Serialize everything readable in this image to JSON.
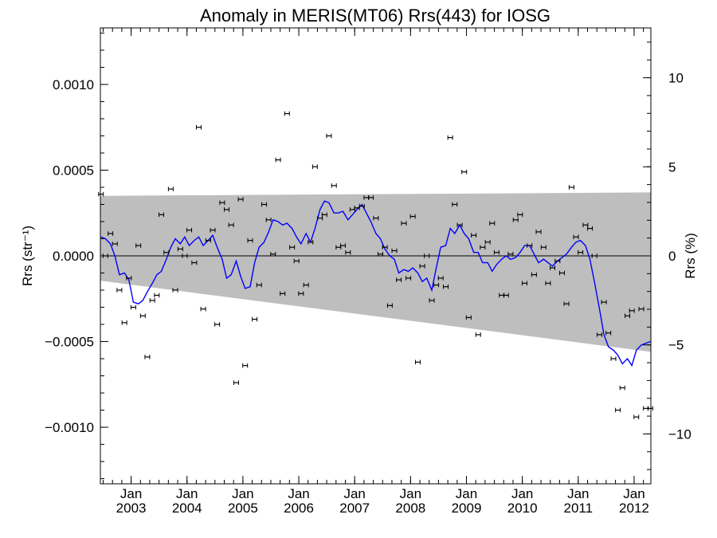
{
  "chart_data": {
    "type": "scatter",
    "title": "Anomaly in MERIS(MT06) Rrs(443) for IOSG",
    "ylabel": "Rrs (str⁻¹)",
    "ylabel_right": "Rrs (%)",
    "xlabel": "",
    "xlim": [
      2002.45,
      2012.3
    ],
    "ylim": [
      -0.00133,
      0.00133
    ],
    "ylim_right": [
      -12.8,
      12.8
    ],
    "x_ticks": [
      {
        "x": 2003.0,
        "top": "Jan",
        "bottom": "2003"
      },
      {
        "x": 2004.0,
        "top": "Jan",
        "bottom": "2004"
      },
      {
        "x": 2005.0,
        "top": "Jan",
        "bottom": "2005"
      },
      {
        "x": 2006.0,
        "top": "Jan",
        "bottom": "2006"
      },
      {
        "x": 2007.0,
        "top": "Jan",
        "bottom": "2007"
      },
      {
        "x": 2008.0,
        "top": "Jan",
        "bottom": "2008"
      },
      {
        "x": 2009.0,
        "top": "Jan",
        "bottom": "2009"
      },
      {
        "x": 2010.0,
        "top": "Jan",
        "bottom": "2010"
      },
      {
        "x": 2011.0,
        "top": "Jan",
        "bottom": "2011"
      },
      {
        "x": 2012.0,
        "top": "Jan",
        "bottom": "2012"
      }
    ],
    "y_ticks": [
      {
        "value": 0.001,
        "label": "0.0010"
      },
      {
        "value": 0.0005,
        "label": "0.0005"
      },
      {
        "value": 0.0,
        "label": "0.0000"
      },
      {
        "value": -0.0005,
        "label": "−0.0005"
      },
      {
        "value": -0.001,
        "label": "−0.0010"
      }
    ],
    "y_ticks_right": [
      {
        "value": 10,
        "label": "10"
      },
      {
        "value": 5,
        "label": "5"
      },
      {
        "value": 0,
        "label": "0"
      },
      {
        "value": -5,
        "label": "−5"
      },
      {
        "value": -10,
        "label": "−10"
      }
    ],
    "band": {
      "upper": [
        [
          2002.45,
          0.00035
        ],
        [
          2012.3,
          0.00037
        ]
      ],
      "lower": [
        [
          2002.45,
          -0.000145
        ],
        [
          2012.3,
          -0.00056
        ]
      ],
      "color": "#bebebe"
    },
    "zero_line": 0,
    "points": [
      [
        2002.46,
        0.00036
      ],
      [
        2002.54,
        0.0
      ],
      [
        2002.63,
        0.00013
      ],
      [
        2002.71,
        7e-05
      ],
      [
        2002.79,
        -0.0002
      ],
      [
        2002.88,
        -0.00039
      ],
      [
        2002.96,
        -0.00013
      ],
      [
        2003.04,
        -0.0003
      ],
      [
        2003.13,
        6e-05
      ],
      [
        2003.21,
        -0.00035
      ],
      [
        2003.29,
        -0.00059
      ],
      [
        2003.38,
        -0.00026
      ],
      [
        2003.46,
        -0.00023
      ],
      [
        2003.54,
        0.00024
      ],
      [
        2003.63,
        2e-05
      ],
      [
        2003.71,
        0.00039
      ],
      [
        2003.79,
        -0.0002
      ],
      [
        2003.88,
        4e-05
      ],
      [
        2003.96,
        0.0
      ],
      [
        2004.04,
        0.00015
      ],
      [
        2004.13,
        -4e-05
      ],
      [
        2004.21,
        0.00075
      ],
      [
        2004.29,
        -0.00031
      ],
      [
        2004.38,
        9e-05
      ],
      [
        2004.46,
        0.00015
      ],
      [
        2004.54,
        -0.0004
      ],
      [
        2004.63,
        0.00031
      ],
      [
        2004.71,
        0.00027
      ],
      [
        2004.79,
        0.00018
      ],
      [
        2004.88,
        -0.00074
      ],
      [
        2004.96,
        0.00033
      ],
      [
        2005.04,
        -0.00064
      ],
      [
        2005.13,
        9e-05
      ],
      [
        2005.21,
        -0.00037
      ],
      [
        2005.29,
        -0.00017
      ],
      [
        2005.38,
        0.0003
      ],
      [
        2005.46,
        0.00021
      ],
      [
        2005.54,
        1e-05
      ],
      [
        2005.63,
        0.00056
      ],
      [
        2005.71,
        -0.00022
      ],
      [
        2005.79,
        0.00083
      ],
      [
        2005.88,
        5e-05
      ],
      [
        2005.96,
        -3e-05
      ],
      [
        2006.04,
        -0.00022
      ],
      [
        2006.13,
        -0.00017
      ],
      [
        2006.21,
        8e-05
      ],
      [
        2006.29,
        0.00052
      ],
      [
        2006.38,
        0.00022
      ],
      [
        2006.46,
        0.00024
      ],
      [
        2006.54,
        0.0007
      ],
      [
        2006.63,
        0.00041
      ],
      [
        2006.71,
        5e-05
      ],
      [
        2006.79,
        6e-05
      ],
      [
        2006.88,
        2e-05
      ],
      [
        2006.96,
        0.00027
      ],
      [
        2007.04,
        0.00028
      ],
      [
        2007.13,
        0.00029
      ],
      [
        2007.21,
        0.00034
      ],
      [
        2007.29,
        0.00034
      ],
      [
        2007.38,
        0.00022
      ],
      [
        2007.46,
        1e-05
      ],
      [
        2007.54,
        5e-05
      ],
      [
        2007.63,
        -0.00029
      ],
      [
        2007.71,
        3e-05
      ],
      [
        2007.79,
        -0.00014
      ],
      [
        2007.88,
        0.00019
      ],
      [
        2007.96,
        -0.00013
      ],
      [
        2008.04,
        0.00023
      ],
      [
        2008.13,
        -0.00062
      ],
      [
        2008.21,
        -6e-05
      ],
      [
        2008.29,
        0.0
      ],
      [
        2008.38,
        -0.00026
      ],
      [
        2008.46,
        -0.00017
      ],
      [
        2008.54,
        -0.00013
      ],
      [
        2008.63,
        -0.00018
      ],
      [
        2008.71,
        0.00069
      ],
      [
        2008.79,
        0.0003
      ],
      [
        2008.88,
        0.00018
      ],
      [
        2008.96,
        0.00049
      ],
      [
        2009.04,
        -0.00036
      ],
      [
        2009.13,
        0.00012
      ],
      [
        2009.21,
        -0.00046
      ],
      [
        2009.29,
        5e-05
      ],
      [
        2009.38,
        8e-05
      ],
      [
        2009.46,
        0.00019
      ],
      [
        2009.54,
        2e-05
      ],
      [
        2009.63,
        -0.00023
      ],
      [
        2009.71,
        -0.00023
      ],
      [
        2009.79,
        1e-05
      ],
      [
        2009.88,
        0.00021
      ],
      [
        2009.96,
        0.00024
      ],
      [
        2010.04,
        -0.00016
      ],
      [
        2010.13,
        6e-05
      ],
      [
        2010.21,
        -0.00011
      ],
      [
        2010.29,
        0.00014
      ],
      [
        2010.38,
        5e-05
      ],
      [
        2010.46,
        -0.00016
      ],
      [
        2010.54,
        -7e-05
      ],
      [
        2010.63,
        -3e-05
      ],
      [
        2010.71,
        -0.0001
      ],
      [
        2010.79,
        -0.00028
      ],
      [
        2010.88,
        0.0004
      ],
      [
        2010.96,
        0.00011
      ],
      [
        2011.04,
        2e-05
      ],
      [
        2011.13,
        0.00018
      ],
      [
        2011.21,
        0.00016
      ],
      [
        2011.29,
        0.0
      ],
      [
        2011.38,
        -0.00046
      ],
      [
        2011.46,
        -0.00027
      ],
      [
        2011.54,
        -0.00045
      ],
      [
        2011.63,
        -0.0006
      ],
      [
        2011.71,
        -0.0009
      ],
      [
        2011.79,
        -0.00077
      ],
      [
        2011.88,
        -0.00035
      ],
      [
        2011.96,
        -0.00032
      ],
      [
        2012.04,
        -0.00094
      ],
      [
        2012.13,
        -0.00031
      ],
      [
        2012.21,
        -0.00089
      ],
      [
        2012.29,
        -0.00089
      ]
    ],
    "errorbar_half": 6e-06,
    "smoothed": {
      "color": "#0000ff",
      "points": [
        [
          2002.46,
          0.00011
        ],
        [
          2002.54,
          0.0001
        ],
        [
          2002.63,
          7e-05
        ],
        [
          2002.71,
          0.0
        ],
        [
          2002.79,
          -0.00011
        ],
        [
          2002.88,
          -0.0001
        ],
        [
          2002.96,
          -0.00014
        ],
        [
          2003.04,
          -0.00027
        ],
        [
          2003.13,
          -0.00028
        ],
        [
          2003.21,
          -0.00026
        ],
        [
          2003.29,
          -0.00021
        ],
        [
          2003.38,
          -0.00016
        ],
        [
          2003.46,
          -0.00011
        ],
        [
          2003.54,
          -9e-05
        ],
        [
          2003.63,
          -2e-05
        ],
        [
          2003.71,
          5e-05
        ],
        [
          2003.79,
          0.0001
        ],
        [
          2003.88,
          7e-05
        ],
        [
          2003.96,
          0.00011
        ],
        [
          2004.04,
          6e-05
        ],
        [
          2004.13,
          9e-05
        ],
        [
          2004.21,
          0.00011
        ],
        [
          2004.29,
          6e-05
        ],
        [
          2004.38,
          9e-05
        ],
        [
          2004.46,
          0.00012
        ],
        [
          2004.54,
          5e-05
        ],
        [
          2004.63,
          -2e-05
        ],
        [
          2004.71,
          -0.00013
        ],
        [
          2004.79,
          -0.00011
        ],
        [
          2004.88,
          -3e-05
        ],
        [
          2004.96,
          -0.00012
        ],
        [
          2005.04,
          -0.00019
        ],
        [
          2005.13,
          -0.00018
        ],
        [
          2005.21,
          -4e-05
        ],
        [
          2005.29,
          5e-05
        ],
        [
          2005.38,
          8e-05
        ],
        [
          2005.46,
          0.00014
        ],
        [
          2005.54,
          0.00021
        ],
        [
          2005.63,
          0.0002
        ],
        [
          2005.71,
          0.00018
        ],
        [
          2005.79,
          0.00019
        ],
        [
          2005.88,
          0.00016
        ],
        [
          2005.96,
          0.00011
        ],
        [
          2006.04,
          7e-05
        ],
        [
          2006.13,
          0.00013
        ],
        [
          2006.21,
          8e-05
        ],
        [
          2006.29,
          0.00016
        ],
        [
          2006.38,
          0.00027
        ],
        [
          2006.46,
          0.00032
        ],
        [
          2006.54,
          0.00031
        ],
        [
          2006.63,
          0.00025
        ],
        [
          2006.71,
          0.00025
        ],
        [
          2006.79,
          0.00026
        ],
        [
          2006.88,
          0.00021
        ],
        [
          2006.96,
          0.00024
        ],
        [
          2007.04,
          0.00027
        ],
        [
          2007.13,
          0.0003
        ],
        [
          2007.21,
          0.00025
        ],
        [
          2007.29,
          0.0002
        ],
        [
          2007.38,
          0.00013
        ],
        [
          2007.46,
          0.0001
        ],
        [
          2007.54,
          4e-05
        ],
        [
          2007.63,
          0.0
        ],
        [
          2007.71,
          -2e-05
        ],
        [
          2007.79,
          -0.0001
        ],
        [
          2007.88,
          -8e-05
        ],
        [
          2007.96,
          -9e-05
        ],
        [
          2008.04,
          -7e-05
        ],
        [
          2008.13,
          -0.0001
        ],
        [
          2008.21,
          -0.00015
        ],
        [
          2008.29,
          -0.00013
        ],
        [
          2008.38,
          -0.0002
        ],
        [
          2008.46,
          -7e-05
        ],
        [
          2008.54,
          5e-05
        ],
        [
          2008.63,
          6e-05
        ],
        [
          2008.71,
          0.00016
        ],
        [
          2008.79,
          0.00013
        ],
        [
          2008.88,
          0.00018
        ],
        [
          2008.96,
          0.00013
        ],
        [
          2009.04,
          0.0001
        ],
        [
          2009.13,
          2e-05
        ],
        [
          2009.21,
          2e-05
        ],
        [
          2009.29,
          -4e-05
        ],
        [
          2009.38,
          -4e-05
        ],
        [
          2009.46,
          -9e-05
        ],
        [
          2009.54,
          -5e-05
        ],
        [
          2009.63,
          -2e-05
        ],
        [
          2009.71,
          0.0
        ],
        [
          2009.79,
          -2e-05
        ],
        [
          2009.88,
          -1e-05
        ],
        [
          2009.96,
          2e-05
        ],
        [
          2010.04,
          6e-05
        ],
        [
          2010.13,
          6e-05
        ],
        [
          2010.21,
          1e-05
        ],
        [
          2010.29,
          -4e-05
        ],
        [
          2010.38,
          -2e-05
        ],
        [
          2010.46,
          -4e-05
        ],
        [
          2010.54,
          -6e-05
        ],
        [
          2010.63,
          -3e-05
        ],
        [
          2010.71,
          -1e-05
        ],
        [
          2010.79,
          1e-05
        ],
        [
          2010.88,
          5e-05
        ],
        [
          2010.96,
          8e-05
        ],
        [
          2011.04,
          9e-05
        ],
        [
          2011.13,
          6e-05
        ],
        [
          2011.21,
          -2e-05
        ],
        [
          2011.29,
          -0.00015
        ],
        [
          2011.38,
          -0.00031
        ],
        [
          2011.46,
          -0.00046
        ],
        [
          2011.54,
          -0.00053
        ],
        [
          2011.63,
          -0.00055
        ],
        [
          2011.71,
          -0.00058
        ],
        [
          2011.79,
          -0.00063
        ],
        [
          2011.88,
          -0.0006
        ],
        [
          2011.96,
          -0.00064
        ],
        [
          2012.04,
          -0.00055
        ],
        [
          2012.13,
          -0.00052
        ],
        [
          2012.21,
          -0.00051
        ],
        [
          2012.29,
          -0.0005
        ]
      ]
    }
  }
}
